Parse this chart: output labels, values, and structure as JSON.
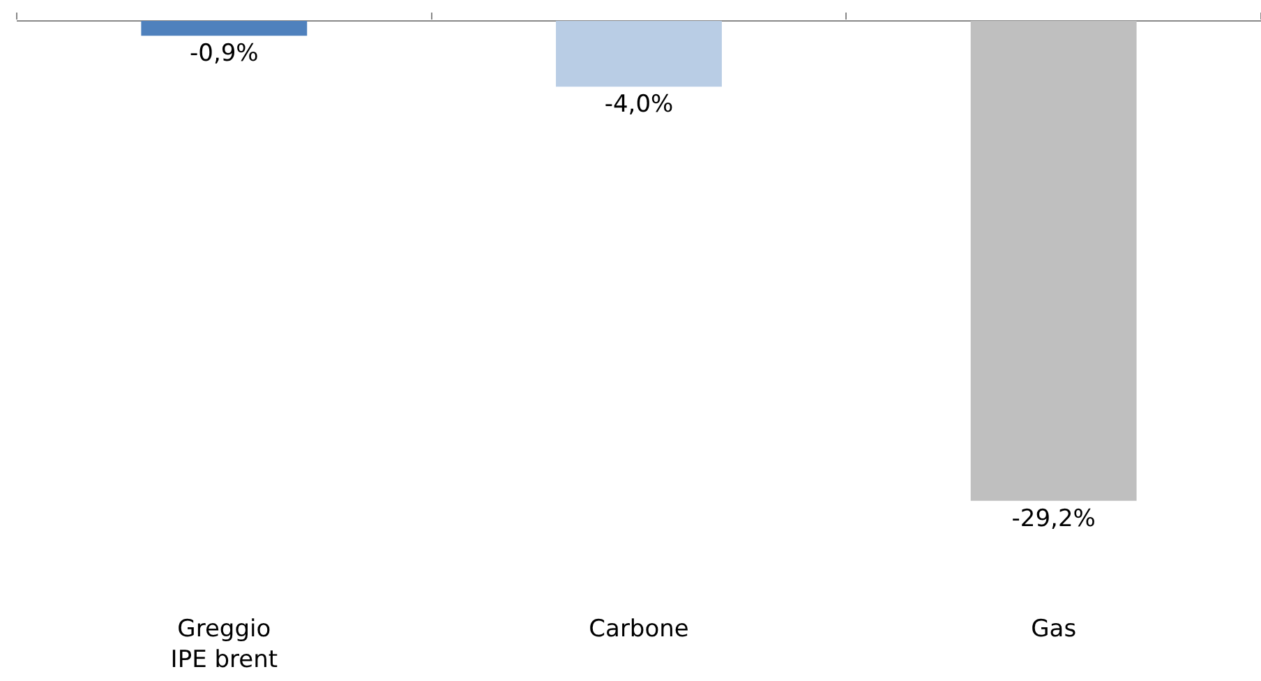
{
  "chart_data": {
    "type": "bar",
    "categories": [
      "Greggio\nIPE brent",
      "Carbone",
      "Gas"
    ],
    "values": [
      -0.9,
      -4.0,
      -29.2
    ],
    "colors": [
      "#4f81bd",
      "#b9cde5",
      "#bfbfbf"
    ],
    "data_labels": true,
    "value_labels": [
      "-0,9%",
      "-4,0%",
      "-29,2%"
    ],
    "grid": false
  }
}
